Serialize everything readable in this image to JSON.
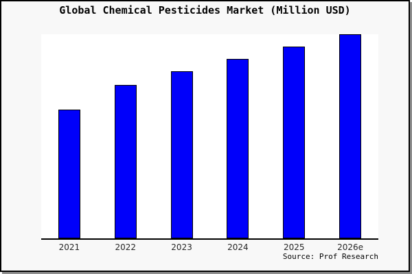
{
  "page": {
    "background_color": "#f8f8f8",
    "frame_border_color": "#000000",
    "frame_shadow_color": "#8f8f8f",
    "plot_background_color": "#ffffff"
  },
  "chart_data": {
    "type": "bar",
    "title": "Global Chemical Pesticides Market (Million USD)",
    "categories": [
      "2021",
      "2022",
      "2023",
      "2024",
      "2025",
      "2026e"
    ],
    "values": [
      63,
      75,
      82,
      88,
      94,
      100
    ],
    "value_scale": "relative bar height as percent of tallest bar (no y-axis or data labels shown)",
    "xlabel": "",
    "ylabel": "",
    "grid": false,
    "legend": "none",
    "bar_color": "#0000fa",
    "bar_border_color": "#000000",
    "axis_line_color": "#000000",
    "source_note": "Source: Prof Research"
  }
}
